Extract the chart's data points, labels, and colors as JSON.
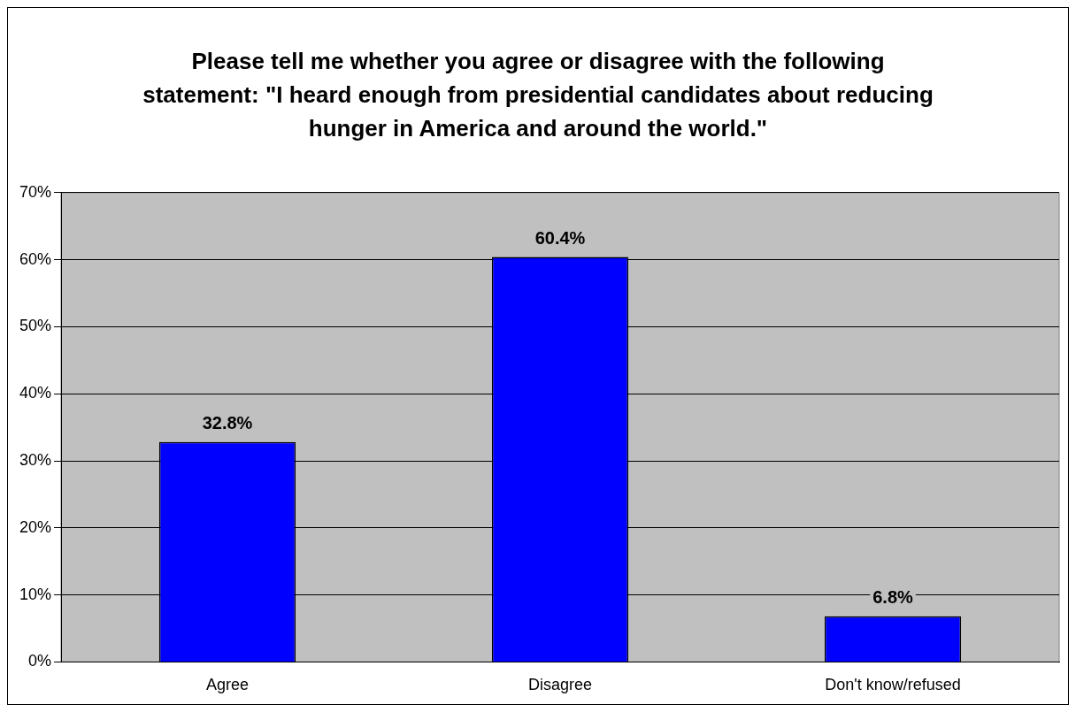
{
  "chart_data": {
    "type": "bar",
    "title": "Please tell me whether you agree or disagree with the following statement: \"I heard enough from presidential candidates about reducing hunger in America and around the world.\"",
    "categories": [
      "Agree",
      "Disagree",
      "Don't know/refused"
    ],
    "values": [
      32.8,
      60.4,
      6.8
    ],
    "value_labels": [
      "32.8%",
      "60.4%",
      "6.8%"
    ],
    "color": "#0000ff",
    "ylim": [
      0,
      70
    ],
    "yticks": [
      {
        "value": 0,
        "label": "0%"
      },
      {
        "value": 10,
        "label": "10%"
      },
      {
        "value": 20,
        "label": "20%"
      },
      {
        "value": 30,
        "label": "30%"
      },
      {
        "value": 40,
        "label": "40%"
      },
      {
        "value": 50,
        "label": "50%"
      },
      {
        "value": 60,
        "label": "60%"
      },
      {
        "value": 70,
        "label": "70%"
      }
    ],
    "grid": "y",
    "legend": false
  }
}
